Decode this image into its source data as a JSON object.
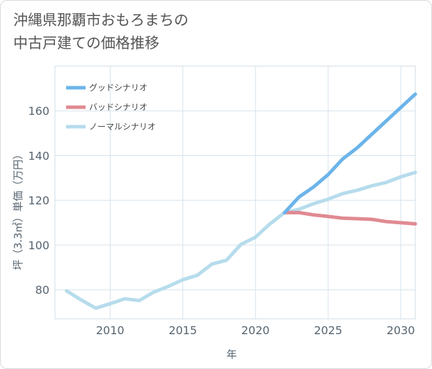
{
  "chart_data": {
    "type": "line",
    "title_lines": [
      "沖縄県那覇市おもろまちの",
      "中古戸建ての価格推移"
    ],
    "xlabel": "年",
    "ylabel": "坪（3.3㎡）単価（万円）",
    "xlim": [
      2006.2,
      2031
    ],
    "ylim": [
      67,
      180
    ],
    "x_ticks": [
      2010,
      2015,
      2020,
      2025,
      2030
    ],
    "y_ticks": [
      80,
      100,
      120,
      140,
      160
    ],
    "grid": true,
    "legend_position": "top-left",
    "series": [
      {
        "name": "グッドシナリオ",
        "color": "#6cb4ea",
        "x": [
          2022,
          2023,
          2024,
          2025,
          2026,
          2027,
          2028,
          2029,
          2030,
          2031
        ],
        "y": [
          114.5,
          121.5,
          126,
          131.5,
          138.5,
          143.5,
          149.5,
          155.5,
          161.5,
          167.5
        ]
      },
      {
        "name": "バッドシナリオ",
        "color": "#e08a92",
        "x": [
          2022,
          2023,
          2024,
          2025,
          2026,
          2027,
          2028,
          2029,
          2030,
          2031
        ],
        "y": [
          114.5,
          114.5,
          113.5,
          112.8,
          112,
          111.8,
          111.5,
          110.5,
          110,
          109.5
        ]
      },
      {
        "name": "ノーマルシナリオ",
        "color": "#b6dcec",
        "x": [
          2007,
          2008,
          2009,
          2010,
          2011,
          2012,
          2013,
          2014,
          2015,
          2016,
          2017,
          2018,
          2019,
          2020,
          2021,
          2022,
          2023,
          2024,
          2025,
          2026,
          2027,
          2028,
          2029,
          2030,
          2031
        ],
        "y": [
          79.5,
          75.5,
          71.8,
          73.8,
          76,
          75.2,
          79,
          81.5,
          84.5,
          86.5,
          91.5,
          93.2,
          100.3,
          103.5,
          109.5,
          114.5,
          116,
          118.5,
          120.5,
          123,
          124.5,
          126.5,
          128,
          130.5,
          132.5
        ]
      }
    ]
  }
}
